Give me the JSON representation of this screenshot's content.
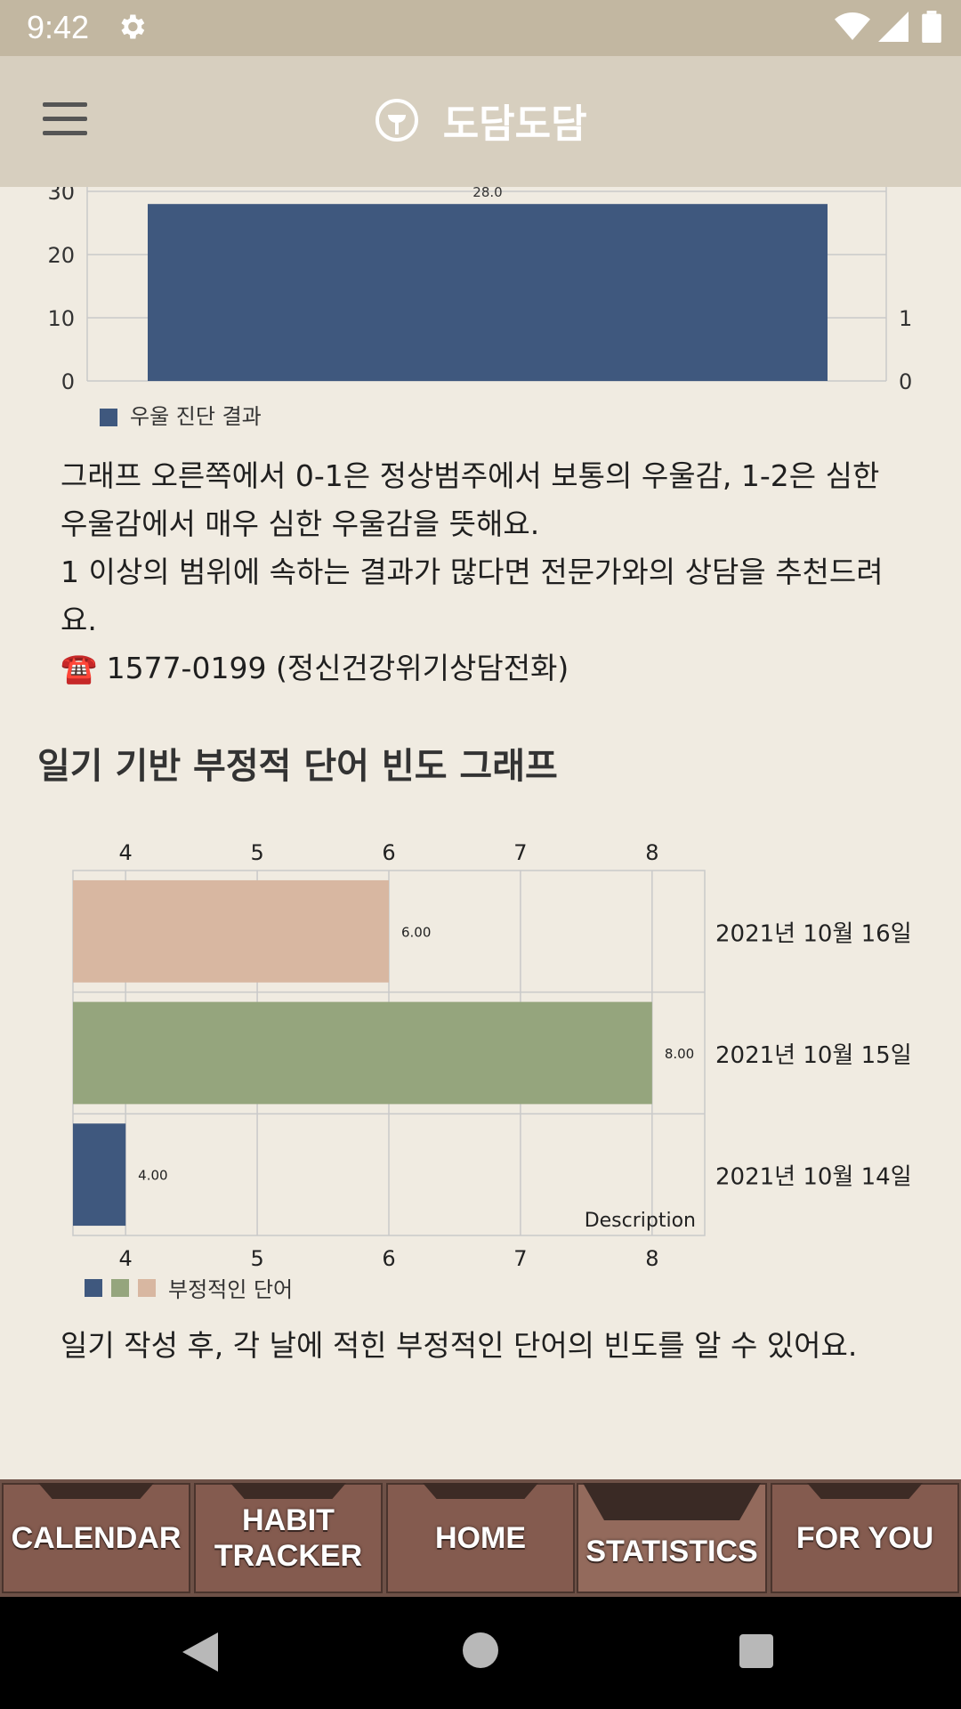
{
  "status_bar": {
    "time": "9:42",
    "icons": [
      "settings-icon",
      "wifi-icon",
      "signal-icon",
      "battery-icon"
    ]
  },
  "app_bar": {
    "title": "도담도담",
    "menu_icon": "hamburger-menu-icon",
    "logo_icon": "brand-logo-icon"
  },
  "depression_chart": {
    "left_ticks": [
      "0",
      "10",
      "20",
      "30"
    ],
    "right_ticks": [
      "0",
      "1"
    ],
    "bar_label": "28.0",
    "legend": "우울 진단 결과"
  },
  "depression_desc": {
    "lines": [
      "그래프 오른쪽에서 0-1은 정상범주에서 보통의 우울감, 1-2은 심한 우울감에서 매우 심한 우울감을 뜻해요.",
      "1 이상의 범위에 속하는 결과가 많다면 전문가와의 상담을 추천드려요.",
      "☎️ 1577-0199 (정신건강위기상담전화)"
    ]
  },
  "section_title": "일기 기반 부정적 단어 빈도 그래프",
  "chart_data": [
    {
      "type": "bar",
      "categories": [
        ""
      ],
      "series": [
        {
          "name": "우울 진단 결과",
          "values": [
            28.0
          ]
        }
      ],
      "ylim": [
        0,
        30
      ],
      "y2lim": [
        0,
        1
      ],
      "left_ticks": [
        0,
        10,
        20,
        30
      ],
      "right_ticks": [
        0,
        1
      ],
      "grid": true,
      "legend_position": "bottom-left"
    },
    {
      "type": "bar",
      "orientation": "horizontal",
      "categories": [
        "2021년 10월 16일",
        "2021년 10월 15일",
        "2021년 10월 14일"
      ],
      "values": [
        6.0,
        8.0,
        4.0
      ],
      "value_labels": [
        "6.00",
        "8.00",
        "4.00"
      ],
      "colors": [
        "#d8b7a1",
        "#95a57d",
        "#3f587e"
      ],
      "legend_colors": [
        "#3f587e",
        "#95a57d",
        "#d8b7a1"
      ],
      "xlim": [
        3.6,
        8.4
      ],
      "ticks": [
        "4",
        "5",
        "6",
        "7",
        "8"
      ],
      "legend": "부정적인 단어",
      "description": "Description",
      "grid": true,
      "legend_position": "bottom-left"
    }
  ],
  "words_desc": "일기 작성 후, 각 날에 적힌 부정적인 단어의 빈도를 알 수 있어요.",
  "tabs": [
    {
      "label": "CALENDAR",
      "active": false
    },
    {
      "label": "HABIT\nTRACKER",
      "active": false
    },
    {
      "label": "HOME",
      "active": false
    },
    {
      "label": "STATISTICS",
      "active": true
    },
    {
      "label": "FOR YOU",
      "active": false
    }
  ],
  "colors": {
    "status_bar": "#c2b7a1",
    "app_bar": "#d7cfbf",
    "background": "#f0ebe1",
    "tab": "#845b4f",
    "bar_blue": "#3f587e"
  }
}
